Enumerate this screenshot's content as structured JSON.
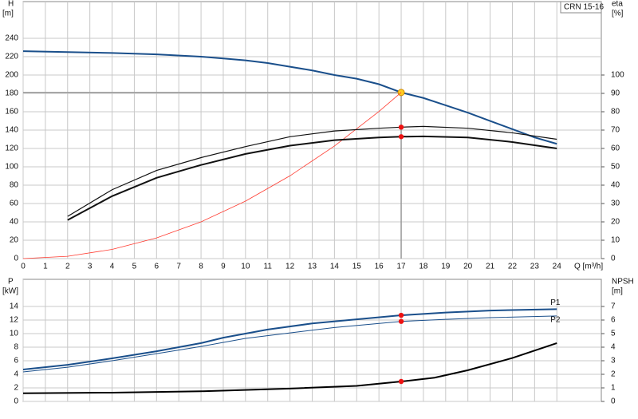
{
  "chart_data": [
    {
      "type": "line",
      "ylabel": [
        "H",
        "[m]"
      ],
      "y2label": [
        "eta",
        "[%]"
      ],
      "xlabel": "Q [m³/h]",
      "legend_box": "CRN 15-16",
      "xlim": [
        0,
        26
      ],
      "xticks": [
        0,
        1,
        2,
        3,
        4,
        5,
        6,
        7,
        8,
        9,
        10,
        11,
        12,
        13,
        14,
        15,
        16,
        17,
        18,
        19,
        20,
        21,
        22,
        23,
        24
      ],
      "ylim": [
        0,
        280
      ],
      "yticks": [
        0,
        20,
        40,
        60,
        80,
        100,
        120,
        140,
        160,
        180,
        200,
        220,
        240
      ],
      "y2lim": [
        0,
        140
      ],
      "y2ticks": [
        0,
        10,
        20,
        30,
        40,
        50,
        60,
        70,
        80,
        90,
        100
      ],
      "grid": true,
      "duty_x": 17,
      "series": [
        {
          "color": "#1a4f8b",
          "width": 2,
          "marker_color": "#ffcc22",
          "axis": "y",
          "x": [
            0,
            2,
            4,
            6,
            8,
            9,
            10,
            11,
            12,
            13,
            14,
            15,
            16,
            17,
            18,
            19,
            20,
            21,
            22,
            23,
            24
          ],
          "values": [
            226,
            225,
            224,
            222.5,
            220,
            218,
            216,
            213,
            209,
            205,
            200,
            196,
            190,
            181,
            175,
            167,
            159,
            150,
            141,
            132,
            125
          ]
        },
        {
          "color": "#ff3b30",
          "width": 0.8,
          "axis": "y",
          "x": [
            0,
            2,
            4,
            6,
            8,
            10,
            12,
            14,
            16,
            17
          ],
          "values": [
            0,
            2.5,
            10,
            22.5,
            40,
            62.6,
            90.2,
            122.7,
            160.3,
            181
          ]
        },
        {
          "color": "#111111",
          "width": 1.2,
          "marker_color": "#ee1111",
          "axis": "y2",
          "x": [
            2,
            4,
            6,
            8,
            10,
            12,
            14,
            16,
            17,
            18,
            20,
            22,
            24
          ],
          "values": [
            23,
            37.5,
            48,
            55,
            61,
            66.4,
            69.5,
            71,
            71.6,
            72,
            71,
            68.5,
            65
          ]
        },
        {
          "color": "#111111",
          "width": 2,
          "marker_color": "#ee1111",
          "axis": "y2",
          "x": [
            2,
            4,
            6,
            8,
            10,
            12,
            14,
            16,
            17,
            18,
            20,
            22,
            24
          ],
          "values": [
            21,
            34,
            44,
            51,
            57,
            61.5,
            64.5,
            66,
            66.4,
            66.6,
            66,
            63.5,
            60
          ]
        }
      ]
    },
    {
      "type": "line",
      "ylabel": [
        "P",
        "[kW]"
      ],
      "y2label": [
        "NPSH",
        "[m]"
      ],
      "ylim": [
        0,
        18
      ],
      "yticks": [
        0,
        2,
        4,
        6,
        8,
        10,
        12,
        14
      ],
      "y2lim": [
        0,
        9
      ],
      "y2ticks": [
        0,
        1,
        2,
        3,
        4,
        5,
        6,
        7
      ],
      "grid": true,
      "duty_x": 17,
      "series": [
        {
          "name": "P1",
          "color": "#1a4f8b",
          "width": 2,
          "marker_color": "#ee1111",
          "axis": "y",
          "x": [
            0,
            2,
            4,
            6,
            8,
            9,
            11,
            13,
            15,
            17,
            19,
            21,
            24
          ],
          "values": [
            4.7,
            5.4,
            6.35,
            7.4,
            8.6,
            9.4,
            10.6,
            11.5,
            12.1,
            12.7,
            13.1,
            13.4,
            13.6
          ]
        },
        {
          "name": "P2",
          "color": "#1a4f8b",
          "width": 1,
          "marker_color": "#ee1111",
          "axis": "y",
          "x": [
            0,
            2,
            4,
            6,
            8,
            10,
            12,
            14,
            17,
            19,
            21,
            24
          ],
          "values": [
            4.35,
            5.05,
            6,
            7.05,
            8.1,
            9.3,
            10.1,
            10.9,
            11.8,
            12.1,
            12.35,
            12.6
          ]
        },
        {
          "color": "#000000",
          "width": 2,
          "marker_color": "#ee1111",
          "axis": "y2",
          "x": [
            0,
            4,
            8,
            12,
            15,
            17,
            18.5,
            20,
            22,
            24
          ],
          "values": [
            0.6,
            0.65,
            0.75,
            0.95,
            1.15,
            1.47,
            1.75,
            2.3,
            3.2,
            4.3
          ]
        }
      ]
    }
  ]
}
